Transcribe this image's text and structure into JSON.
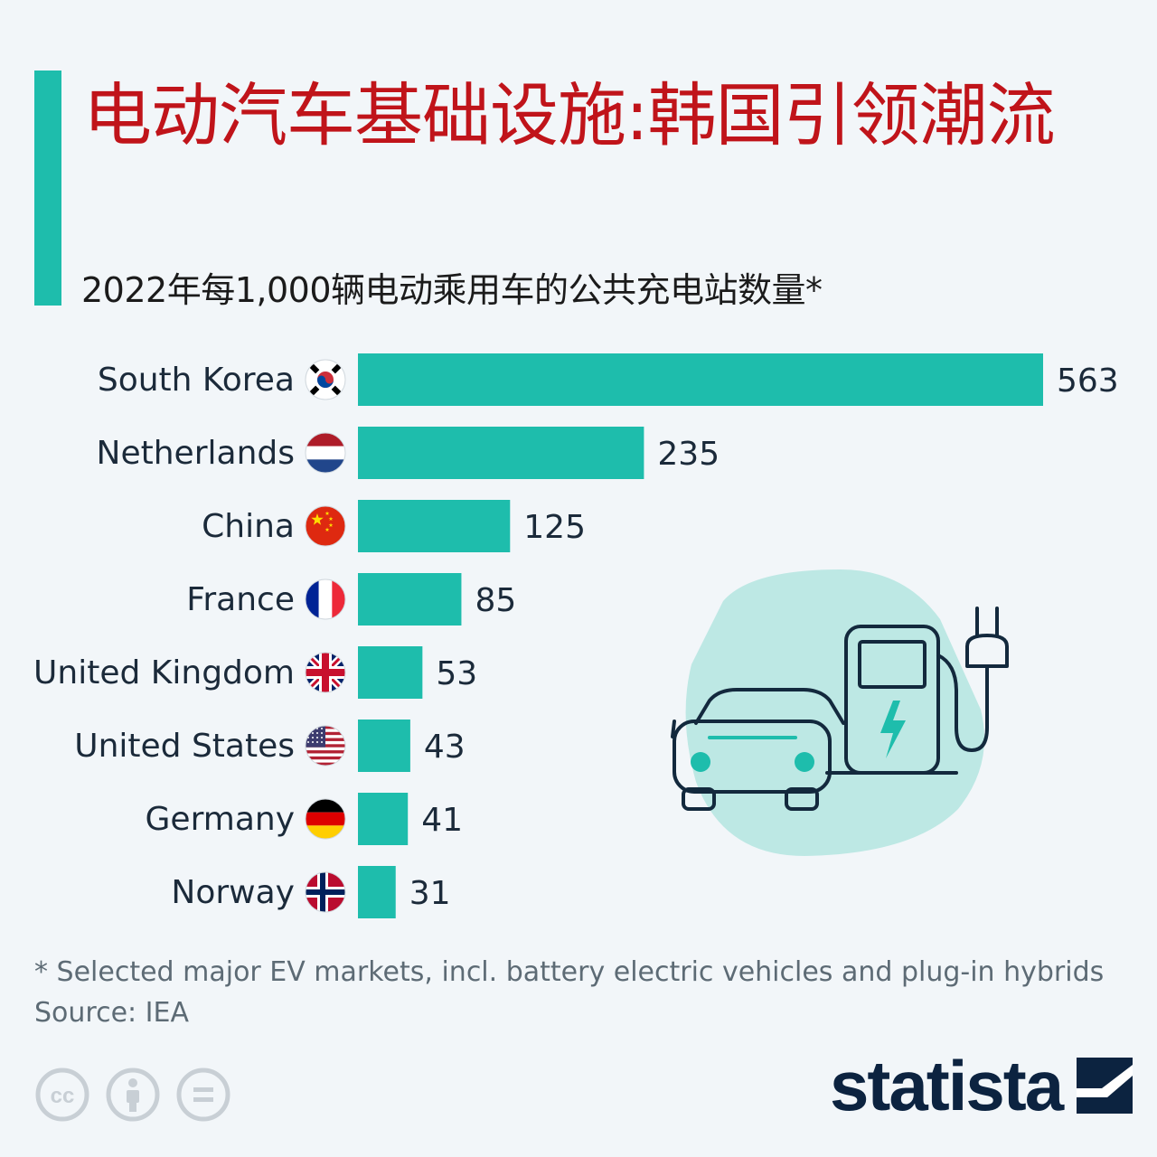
{
  "title": "电动汽车基础设施:韩国引领潮流",
  "subtitle": "2022年每1,000辆电动乘用车的公共充电站数量*",
  "footnote": "* Selected major EV markets, incl. battery electric vehicles and plug-in hybrids",
  "source": "Source: IEA",
  "brand": "statista",
  "colors": {
    "accent": "#1ebdac",
    "title": "#c0141a",
    "text": "#1b1b1b",
    "muted": "#5d6b75",
    "brand": "#0c2340"
  },
  "chart_data": {
    "type": "bar",
    "orientation": "horizontal",
    "categories": [
      "South Korea",
      "Netherlands",
      "China",
      "France",
      "United Kingdom",
      "United States",
      "Germany",
      "Norway"
    ],
    "values": [
      563,
      235,
      125,
      85,
      53,
      43,
      41,
      31
    ],
    "value_labels": [
      "563",
      "235",
      "125",
      "85",
      "53",
      "43",
      "41",
      "31"
    ],
    "flags": [
      "south-korea-flag-icon",
      "netherlands-flag-icon",
      "china-flag-icon",
      "france-flag-icon",
      "united-kingdom-flag-icon",
      "united-states-flag-icon",
      "germany-flag-icon",
      "norway-flag-icon"
    ],
    "xlim": [
      0,
      563
    ],
    "grid": false,
    "legend": "none",
    "bar_color": "#1ebdac"
  },
  "icons": {
    "license": [
      "creative-commons-icon",
      "attribution-icon",
      "no-derivatives-icon"
    ],
    "illustration": "ev-charging-station-icon",
    "logo": "statista-logo-icon"
  }
}
